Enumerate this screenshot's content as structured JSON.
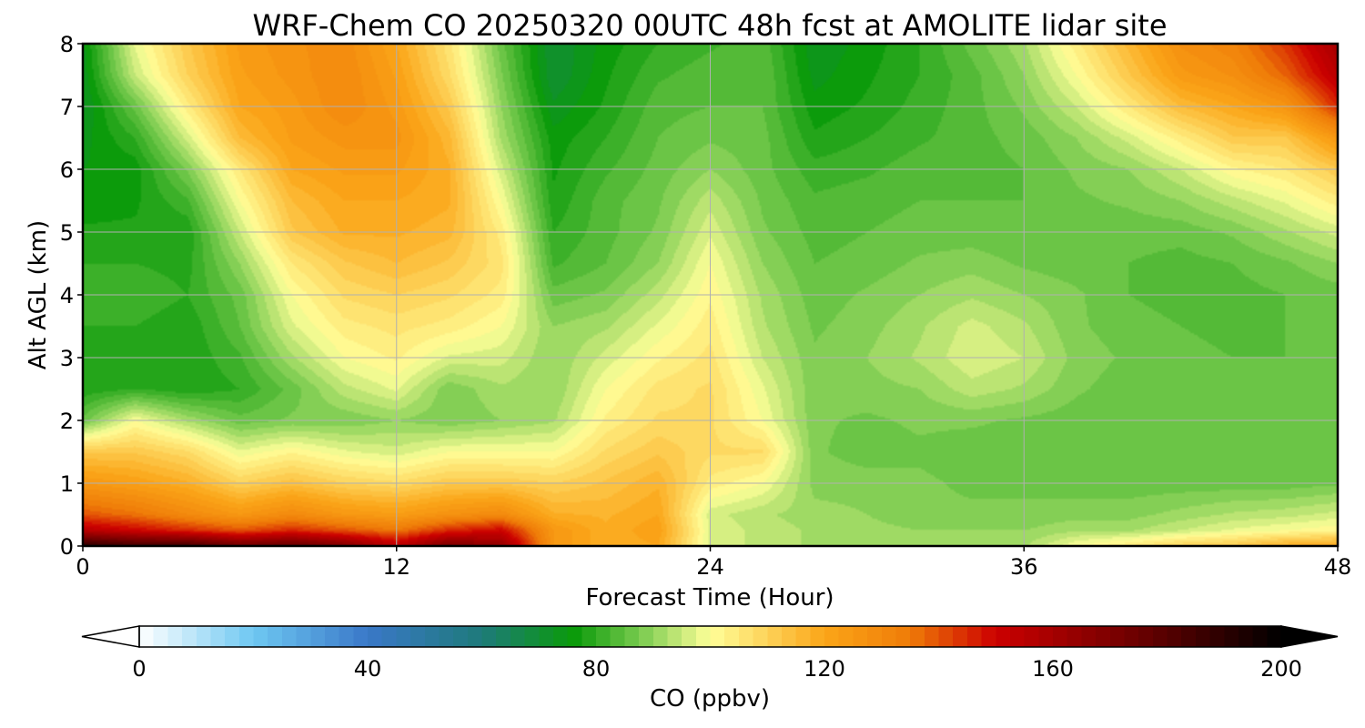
{
  "chart_data": {
    "type": "heatmap",
    "title": "WRF-Chem CO  20250320 00UTC 48h fcst at AMOLITE lidar site",
    "xlabel": "Forecast Time (Hour)",
    "ylabel": "Alt AGL (km)",
    "xlim": [
      0,
      48
    ],
    "ylim": [
      0,
      8
    ],
    "x_ticks": [
      0,
      12,
      24,
      36,
      48
    ],
    "y_ticks": [
      0,
      1,
      2,
      3,
      4,
      5,
      6,
      7,
      8
    ],
    "grid": true,
    "colorbar": {
      "label": "CO  (ppbv)",
      "vmin": 0,
      "vmax": 200,
      "ticks": [
        0,
        40,
        80,
        120,
        160,
        200
      ],
      "extend": "both",
      "orientation": "horizontal",
      "colors": {
        "c0": "#ffffff",
        "c20": "#6ec8f2",
        "c40": "#3a78c8",
        "c60": "#1e7a7a",
        "c76": "#0a9a0a",
        "c88": "#7ccc50",
        "c100": "#ffff99",
        "c120": "#fba518",
        "c135": "#ef7b08",
        "c150": "#cc0000",
        "c175": "#6a0000",
        "c200": "#000000"
      }
    },
    "x": [
      0,
      2,
      4,
      6,
      8,
      10,
      12,
      14,
      16,
      18,
      20,
      22,
      24,
      26,
      28,
      30,
      32,
      34,
      36,
      38,
      40,
      42,
      44,
      46,
      48
    ],
    "y": [
      0,
      0.25,
      0.5,
      1,
      1.5,
      2,
      2.5,
      3,
      3.5,
      4,
      4.5,
      5,
      5.5,
      6,
      6.5,
      7,
      7.5,
      8
    ],
    "z": [
      [
        190,
        185,
        185,
        175,
        178,
        170,
        155,
        172,
        165,
        125,
        118,
        120,
        97,
        94,
        92,
        92,
        92,
        91,
        92,
        100,
        105,
        110,
        112,
        118,
        120
      ],
      [
        155,
        150,
        145,
        140,
        145,
        140,
        135,
        145,
        150,
        125,
        118,
        122,
        97,
        94,
        92,
        91,
        90,
        90,
        90,
        92,
        92,
        95,
        98,
        100,
        102
      ],
      [
        140,
        136,
        130,
        125,
        130,
        125,
        123,
        127,
        130,
        118,
        117,
        120,
        96,
        93,
        91,
        90,
        88,
        88,
        88,
        89,
        89,
        91,
        93,
        94,
        96
      ],
      [
        125,
        122,
        118,
        110,
        114,
        110,
        108,
        112,
        112,
        110,
        113,
        117,
        104,
        100,
        89,
        89,
        88,
        87,
        87,
        86,
        86,
        86,
        86,
        86,
        87
      ],
      [
        112,
        112,
        108,
        98,
        102,
        98,
        96,
        100,
        100,
        100,
        108,
        112,
        108,
        108,
        88,
        86,
        87,
        86,
        86,
        86,
        85,
        85,
        85,
        85,
        85
      ],
      [
        86,
        100,
        92,
        86,
        88,
        88,
        90,
        88,
        90,
        92,
        103,
        108,
        108,
        100,
        88,
        87,
        88,
        88,
        87,
        86,
        86,
        86,
        86,
        85,
        85
      ],
      [
        78,
        80,
        78,
        80,
        86,
        94,
        98,
        88,
        92,
        90,
        100,
        106,
        108,
        98,
        88,
        89,
        90,
        94,
        92,
        88,
        86,
        86,
        86,
        85,
        85
      ],
      [
        78,
        80,
        78,
        82,
        92,
        100,
        103,
        97,
        96,
        90,
        96,
        102,
        106,
        95,
        88,
        90,
        93,
        97,
        95,
        89,
        87,
        86,
        85,
        85,
        85
      ],
      [
        80,
        80,
        78,
        85,
        97,
        104,
        106,
        104,
        100,
        90,
        92,
        98,
        104,
        93,
        87,
        89,
        92,
        96,
        93,
        88,
        86,
        85,
        84,
        85,
        85
      ],
      [
        82,
        82,
        80,
        86,
        100,
        108,
        110,
        108,
        104,
        86,
        88,
        94,
        102,
        92,
        86,
        88,
        90,
        92,
        90,
        88,
        85,
        84,
        84,
        85,
        86
      ],
      [
        80,
        80,
        79,
        90,
        105,
        112,
        115,
        112,
        106,
        82,
        85,
        90,
        100,
        90,
        85,
        86,
        88,
        89,
        87,
        86,
        85,
        84,
        85,
        87,
        90
      ],
      [
        78,
        78,
        78,
        95,
        112,
        118,
        118,
        116,
        104,
        80,
        84,
        88,
        97,
        88,
        84,
        85,
        86,
        86,
        85,
        86,
        86,
        86,
        88,
        92,
        96
      ],
      [
        76,
        77,
        82,
        100,
        115,
        120,
        120,
        118,
        100,
        78,
        84,
        87,
        94,
        87,
        83,
        84,
        85,
        85,
        85,
        87,
        88,
        90,
        94,
        98,
        104
      ],
      [
        75,
        76,
        88,
        105,
        120,
        123,
        123,
        118,
        96,
        77,
        82,
        86,
        90,
        86,
        81,
        82,
        84,
        84,
        85,
        88,
        90,
        95,
        102,
        105,
        112
      ],
      [
        74,
        80,
        96,
        115,
        123,
        126,
        126,
        116,
        92,
        76,
        80,
        85,
        87,
        86,
        78,
        80,
        82,
        84,
        86,
        90,
        96,
        104,
        112,
        112,
        125
      ],
      [
        72,
        86,
        104,
        120,
        124,
        130,
        124,
        112,
        90,
        73,
        78,
        84,
        85,
        85,
        76,
        78,
        81,
        84,
        88,
        95,
        105,
        115,
        120,
        126,
        145
      ],
      [
        73,
        95,
        110,
        122,
        126,
        130,
        122,
        108,
        88,
        70,
        77,
        82,
        84,
        85,
        74,
        77,
        80,
        84,
        90,
        100,
        112,
        124,
        128,
        138,
        155
      ],
      [
        74,
        98,
        112,
        123,
        127,
        129,
        120,
        106,
        86,
        70,
        76,
        80,
        82,
        84,
        73,
        76,
        80,
        86,
        92,
        104,
        116,
        128,
        132,
        144,
        160
      ]
    ]
  }
}
